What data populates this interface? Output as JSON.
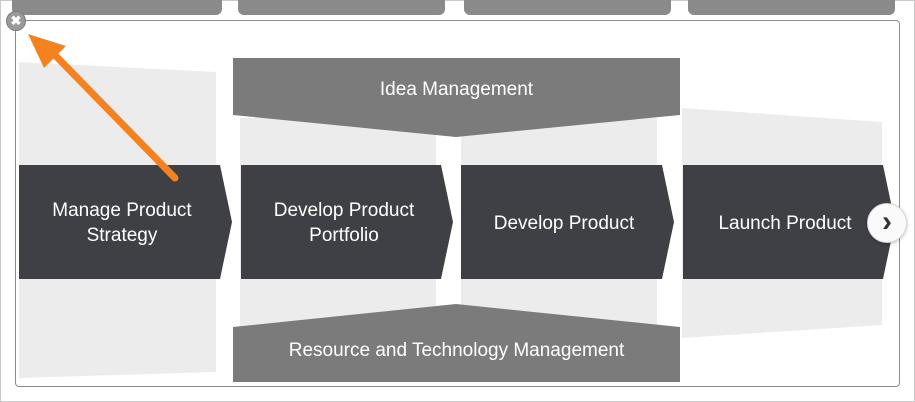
{
  "tabs": [
    "",
    "",
    "",
    ""
  ],
  "controls": {
    "close_glyph": "✖",
    "next_glyph": "›"
  },
  "diagram": {
    "top_band": "Idea Management",
    "bottom_band": "Resource and Technology Management",
    "stages": [
      "Manage Product Strategy",
      "Develop Product Portfolio",
      "Develop Product",
      "Launch Product"
    ]
  },
  "colors": {
    "stage_fill": "#3f4045",
    "band_fill": "#7b7b7b",
    "bg_panel": "#e9e9e9",
    "arrow": "#f58220"
  }
}
